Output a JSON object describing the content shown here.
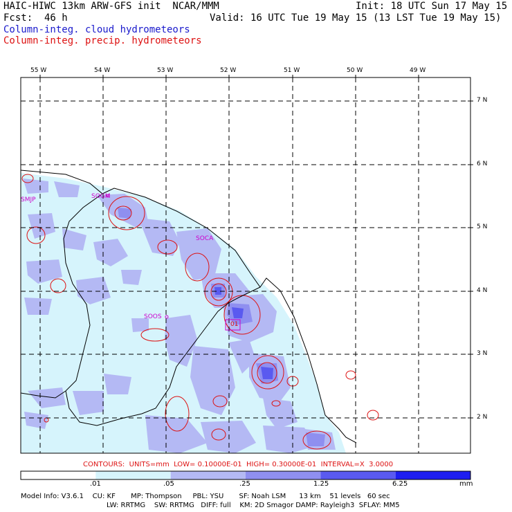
{
  "header": {
    "line1_left": "HAIC-HIWC 13km ARW-GFS init  NCAR/MMM",
    "line1_right": "Init: 18 UTC Sun 17 May 15",
    "line2_left": "Fcst:  46 h",
    "line2_right": "Valid: 16 UTC Tue 19 May 15 (13 LST Tue 19 May 15)",
    "field1": "Column-integ. cloud hydrometeors",
    "field2": "Column-integ. precip. hydrometeors",
    "field1_color": "#1a1acc",
    "field2_color": "#dd1111"
  },
  "map": {
    "lon_labels": [
      "55 W",
      "54 W",
      "53 W",
      "52 W",
      "51 W",
      "50 W",
      "49 W"
    ],
    "lat_labels": [
      "7 N",
      "6 N",
      "5 N",
      "4 N",
      "3 N",
      "2 N"
    ],
    "stations": [
      "SMJP",
      "SOGM",
      "SOCA",
      "SOOS",
      "01"
    ],
    "station_color": "#cc00cc",
    "coastline_color": "#000000",
    "grid_style": "dashed"
  },
  "contour_info": "CONTOURS:  UNITS=mm  LOW= 0.10000E-01  HIGH= 0.30000E-01  INTERVAL=X  3.0000",
  "colorbar": {
    "ticks": [
      ".01",
      ".05",
      ".25",
      "1.25",
      "6.25"
    ],
    "unit": "mm",
    "colors": [
      "#ffffff",
      "#d6f4fc",
      "#b4b9f4",
      "#8f8ff0",
      "#5a5af0",
      "#1e1ef0"
    ]
  },
  "footer": {
    "line1": "Model Info: V3.6.1    CU: KF       MP: Thompson     PBL: YSU       SF: Noah LSM      13 km    51 levels   60 sec",
    "line2": "LW: RRTMG    SW: RRTMG   DIFF: full    KM: 2D Smagor DAMP: Rayleigh3  SFLAY: MM5"
  }
}
